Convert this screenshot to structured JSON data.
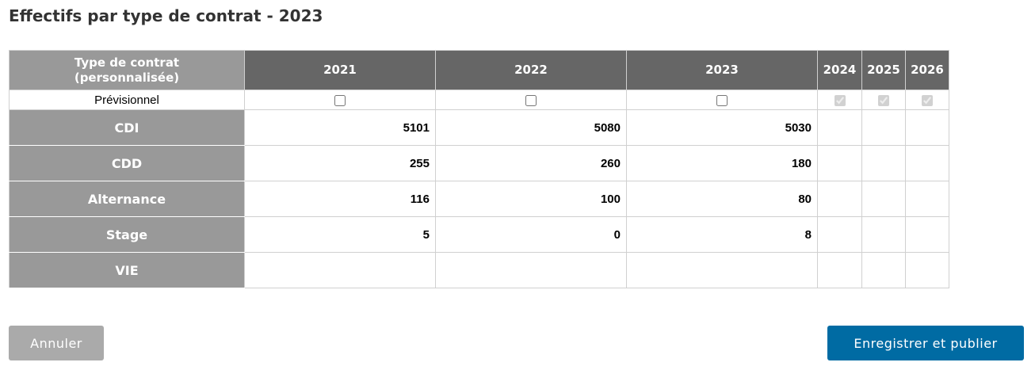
{
  "title": "Effectifs par type de contrat - 2023",
  "table": {
    "header": [
      "Type de contrat (personnalisée)",
      "2021",
      "2022",
      "2023",
      "2024",
      "2025",
      "2026"
    ],
    "forecast_row": {
      "label": "Prévisionnel",
      "checked": [
        false,
        false,
        false,
        true,
        true,
        true
      ]
    },
    "rows": [
      {
        "label": "CDI",
        "values": [
          5101,
          5080,
          5030
        ]
      },
      {
        "label": "CDD",
        "values": [
          255,
          260,
          180
        ]
      },
      {
        "label": "Alternance",
        "values": [
          116,
          100,
          80
        ]
      },
      {
        "label": "Stage",
        "values": [
          5,
          0,
          8
        ]
      },
      {
        "label": "VIE",
        "values": []
      }
    ]
  },
  "buttons": {
    "cancel": "Annuler",
    "submit": "Enregistrer et publier"
  }
}
